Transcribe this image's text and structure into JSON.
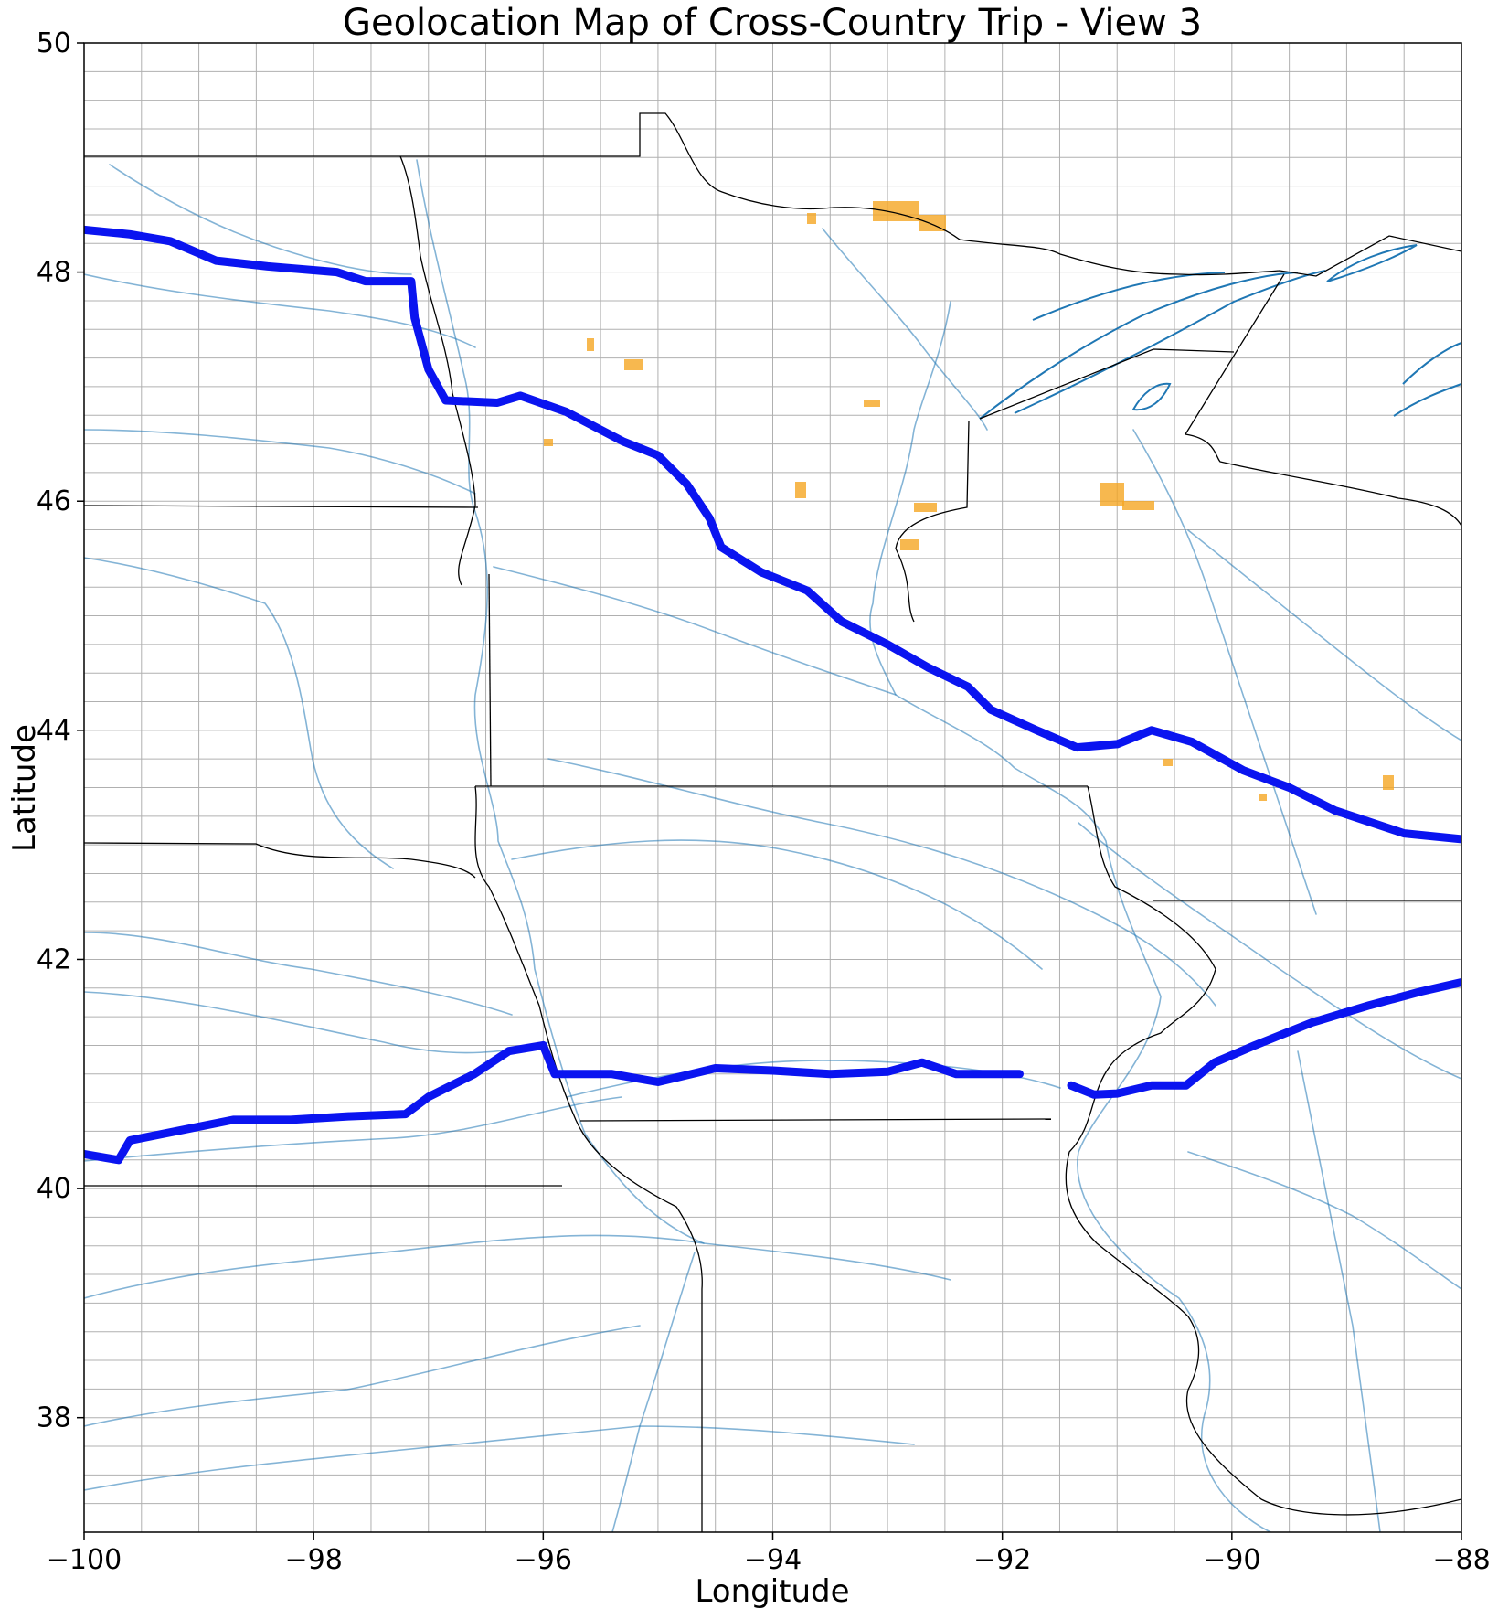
{
  "title": "Geolocation Map of Cross-Country Trip - View 3",
  "xlabel": "Longitude",
  "ylabel": "Latitude",
  "colors": {
    "route": "#0a14f0",
    "water": "#1f77b4",
    "protected_areas": "#f5a623",
    "borders": "#000000",
    "grid": "#b0b0b0"
  },
  "chart_data": {
    "type": "map",
    "xlim": [
      -100,
      -88
    ],
    "ylim": [
      37,
      50
    ],
    "grid": true,
    "minor_grid_step": 0.5,
    "x_ticks": [
      -100,
      -98,
      -96,
      -94,
      -92,
      -90,
      -88
    ],
    "y_ticks": [
      38,
      40,
      42,
      44,
      46,
      48,
      50
    ],
    "x_tick_labels": [
      "−100",
      "−98",
      "−96",
      "−94",
      "−92",
      "−90",
      "−88"
    ],
    "y_tick_labels": [
      "38",
      "40",
      "42",
      "44",
      "46",
      "48",
      "50"
    ],
    "route_segments": [
      [
        [
          -100.0,
          48.37
        ],
        [
          -99.6,
          48.33
        ],
        [
          -99.25,
          48.27
        ],
        [
          -98.85,
          48.1
        ],
        [
          -98.4,
          48.05
        ],
        [
          -97.8,
          48.0
        ],
        [
          -97.55,
          47.92
        ],
        [
          -97.15,
          47.92
        ],
        [
          -97.12,
          47.6
        ],
        [
          -97.0,
          47.15
        ],
        [
          -96.85,
          46.88
        ],
        [
          -96.4,
          46.86
        ],
        [
          -96.2,
          46.92
        ],
        [
          -95.8,
          46.78
        ],
        [
          -95.3,
          46.52
        ],
        [
          -95.0,
          46.4
        ],
        [
          -94.75,
          46.15
        ],
        [
          -94.55,
          45.85
        ],
        [
          -94.45,
          45.6
        ],
        [
          -94.1,
          45.38
        ],
        [
          -93.7,
          45.22
        ],
        [
          -93.4,
          44.95
        ],
        [
          -93.0,
          44.75
        ],
        [
          -92.65,
          44.55
        ],
        [
          -92.3,
          44.38
        ],
        [
          -92.1,
          44.18
        ],
        [
          -91.7,
          44.0
        ],
        [
          -91.35,
          43.85
        ],
        [
          -91.0,
          43.88
        ],
        [
          -90.7,
          44.0
        ],
        [
          -90.35,
          43.9
        ],
        [
          -89.9,
          43.65
        ],
        [
          -89.5,
          43.5
        ],
        [
          -89.1,
          43.3
        ],
        [
          -88.5,
          43.1
        ],
        [
          -88.0,
          43.05
        ]
      ],
      [
        [
          -100.0,
          40.3
        ],
        [
          -99.7,
          40.25
        ],
        [
          -99.6,
          40.42
        ],
        [
          -99.2,
          40.5
        ],
        [
          -98.7,
          40.6
        ],
        [
          -98.2,
          40.6
        ],
        [
          -97.7,
          40.63
        ],
        [
          -97.2,
          40.65
        ],
        [
          -97.0,
          40.8
        ],
        [
          -96.6,
          41.0
        ],
        [
          -96.3,
          41.2
        ],
        [
          -96.0,
          41.25
        ],
        [
          -95.9,
          41.0
        ],
        [
          -95.4,
          41.0
        ],
        [
          -95.0,
          40.93
        ],
        [
          -94.5,
          41.05
        ],
        [
          -94.0,
          41.03
        ],
        [
          -93.5,
          41.0
        ],
        [
          -93.0,
          41.02
        ],
        [
          -92.7,
          41.1
        ],
        [
          -92.4,
          41.0
        ],
        [
          -91.85,
          41.0
        ]
      ],
      [
        [
          -91.4,
          40.9
        ],
        [
          -91.2,
          40.82
        ],
        [
          -91.0,
          40.83
        ],
        [
          -90.7,
          40.9
        ],
        [
          -90.4,
          40.9
        ],
        [
          -90.15,
          41.1
        ],
        [
          -89.8,
          41.25
        ],
        [
          -89.3,
          41.45
        ],
        [
          -88.8,
          41.6
        ],
        [
          -88.35,
          41.72
        ],
        [
          -88.0,
          41.8
        ]
      ]
    ]
  }
}
